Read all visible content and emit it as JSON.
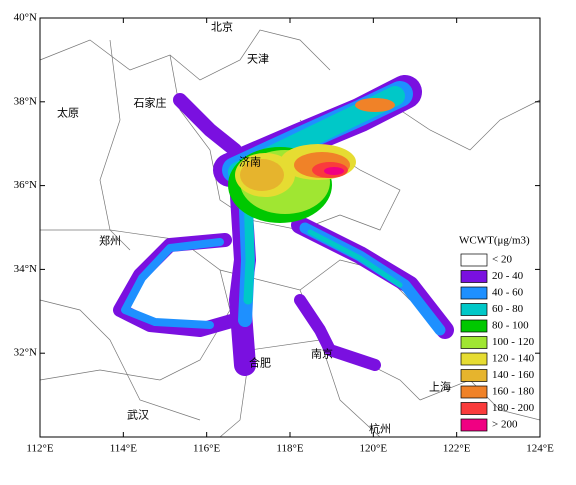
{
  "map": {
    "xlim": [
      112,
      124
    ],
    "ylim": [
      30,
      40
    ],
    "xticks": [
      {
        "value": 112,
        "label": "112°E"
      },
      {
        "value": 114,
        "label": "114°E"
      },
      {
        "value": 116,
        "label": "116°E"
      },
      {
        "value": 118,
        "label": "118°E"
      },
      {
        "value": 120,
        "label": "120°E"
      },
      {
        "value": 122,
        "label": "122°E"
      },
      {
        "value": 124,
        "label": "124°E"
      }
    ],
    "yticks": [
      {
        "value": 32,
        "label": "32°N"
      },
      {
        "value": 34,
        "label": "34°N"
      },
      {
        "value": 36,
        "label": "36°N"
      },
      {
        "value": 38,
        "label": "38°N"
      },
      {
        "value": 40,
        "label": "40°N"
      }
    ],
    "cities": [
      "北京",
      "天津",
      "太原",
      "石家庄",
      "济南",
      "郑州",
      "合肥",
      "南京",
      "上海",
      "武汉",
      "杭州"
    ],
    "legend": {
      "title": "WCWT(μg/m3)",
      "items": [
        {
          "label": "< 20",
          "color": "#ffffff"
        },
        {
          "label": "20 - 40",
          "color": "#7a10e0"
        },
        {
          "label": "40 - 60",
          "color": "#1e90ff"
        },
        {
          "label": "60 - 80",
          "color": "#00c8c8"
        },
        {
          "label": "80 - 100",
          "color": "#00c800"
        },
        {
          "label": "100 - 120",
          "color": "#a0e632"
        },
        {
          "label": "120 - 140",
          "color": "#e6dc32"
        },
        {
          "label": "140 - 160",
          "color": "#e6b42d"
        },
        {
          "label": "160 - 180",
          "color": "#f08228"
        },
        {
          "label": "180 - 200",
          "color": "#fa3c3c"
        },
        {
          "label": "> 200",
          "color": "#f00082"
        }
      ]
    }
  }
}
